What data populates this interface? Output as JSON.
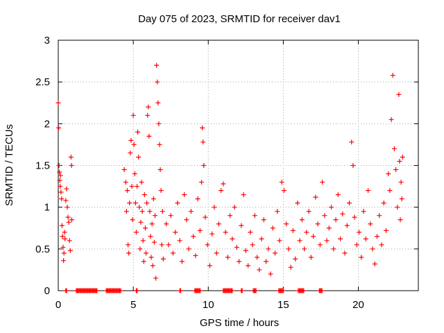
{
  "chart_data": {
    "type": "scatter",
    "title": "Day 075 of 2023, SRMTID for receiver dav1",
    "xlabel": "GPS time / hours",
    "ylabel": "SRMTID / TECUs",
    "xlim": [
      0,
      24
    ],
    "ylim": [
      0,
      3
    ],
    "x_ticks": [
      0,
      5,
      10,
      15,
      20
    ],
    "y_ticks": [
      0,
      0.5,
      1,
      1.5,
      2,
      2.5,
      3
    ],
    "x_tick_labels": [
      "0",
      "5",
      "10",
      "15",
      "20"
    ],
    "y_tick_labels": [
      "0",
      "0.5",
      "1",
      "1.5",
      "2",
      "2.5",
      "3"
    ],
    "grid": true,
    "marker": "+",
    "color": "#ff0000",
    "series": [
      {
        "name": "dav1",
        "points": [
          [
            0.0,
            2.25
          ],
          [
            0.03,
            1.95
          ],
          [
            0.05,
            1.5
          ],
          [
            0.08,
            1.42
          ],
          [
            0.1,
            1.32
          ],
          [
            0.13,
            1.25
          ],
          [
            0.15,
            1.38
          ],
          [
            0.18,
            1.18
          ],
          [
            0.22,
            1.1
          ],
          [
            0.25,
            0.78
          ],
          [
            0.28,
            0.65
          ],
          [
            0.32,
            0.52
          ],
          [
            0.35,
            0.36
          ],
          [
            0.38,
            0.45
          ],
          [
            0.42,
            0.7
          ],
          [
            0.45,
            0.62
          ],
          [
            0.5,
            1.08
          ],
          [
            0.55,
            1.22
          ],
          [
            0.6,
            1.0
          ],
          [
            0.65,
            0.88
          ],
          [
            0.7,
            0.82
          ],
          [
            0.75,
            0.6
          ],
          [
            0.8,
            0.48
          ],
          [
            0.85,
            1.6
          ],
          [
            0.88,
            1.5
          ],
          [
            0.9,
            0.85
          ],
          [
            4.4,
            1.45
          ],
          [
            4.5,
            1.3
          ],
          [
            4.55,
            0.95
          ],
          [
            4.6,
            1.2
          ],
          [
            4.65,
            0.55
          ],
          [
            4.7,
            0.45
          ],
          [
            4.75,
            1.05
          ],
          [
            4.8,
            1.65
          ],
          [
            4.85,
            1.8
          ],
          [
            4.9,
            1.25
          ],
          [
            4.95,
            0.85
          ],
          [
            5.0,
            2.1
          ],
          [
            5.05,
            1.75
          ],
          [
            5.1,
            1.4
          ],
          [
            5.15,
            1.05
          ],
          [
            5.2,
            0.7
          ],
          [
            5.25,
            1.25
          ],
          [
            5.3,
            1.9
          ],
          [
            5.35,
            1.6
          ],
          [
            5.4,
            1.0
          ],
          [
            5.45,
            0.5
          ],
          [
            5.5,
            0.82
          ],
          [
            5.55,
            1.3
          ],
          [
            5.6,
            0.95
          ],
          [
            5.65,
            0.6
          ],
          [
            5.7,
            0.35
          ],
          [
            5.75,
            1.15
          ],
          [
            5.8,
            0.75
          ],
          [
            5.85,
            0.45
          ],
          [
            5.9,
            1.05
          ],
          [
            5.95,
            2.1
          ],
          [
            6.0,
            2.2
          ],
          [
            6.05,
            1.85
          ],
          [
            6.1,
            0.95
          ],
          [
            6.15,
            0.65
          ],
          [
            6.2,
            0.4
          ],
          [
            6.25,
            0.8
          ],
          [
            6.3,
            0.3
          ],
          [
            6.35,
            1.1
          ],
          [
            6.4,
            0.58
          ],
          [
            6.45,
            0.9
          ],
          [
            6.5,
            0.15
          ],
          [
            6.55,
            2.7
          ],
          [
            6.6,
            2.5
          ],
          [
            6.65,
            2.25
          ],
          [
            6.7,
            2.0
          ],
          [
            6.75,
            1.75
          ],
          [
            6.8,
            1.45
          ],
          [
            6.85,
            1.2
          ],
          [
            6.9,
            0.55
          ],
          [
            6.95,
            0.95
          ],
          [
            7.0,
            0.38
          ],
          [
            7.2,
            0.8
          ],
          [
            7.35,
            0.55
          ],
          [
            7.5,
            0.9
          ],
          [
            7.65,
            0.45
          ],
          [
            7.8,
            0.7
          ],
          [
            7.95,
            1.05
          ],
          [
            8.1,
            0.6
          ],
          [
            8.25,
            0.35
          ],
          [
            8.4,
            1.15
          ],
          [
            8.55,
            0.85
          ],
          [
            8.7,
            0.5
          ],
          [
            8.85,
            0.95
          ],
          [
            9.0,
            0.65
          ],
          [
            9.15,
            0.42
          ],
          [
            9.3,
            1.1
          ],
          [
            9.45,
            0.72
          ],
          [
            9.55,
            1.3
          ],
          [
            9.6,
            1.95
          ],
          [
            9.65,
            1.78
          ],
          [
            9.7,
            1.5
          ],
          [
            9.8,
            0.88
          ],
          [
            9.95,
            0.55
          ],
          [
            10.1,
            0.3
          ],
          [
            10.25,
            0.68
          ],
          [
            10.4,
            1.0
          ],
          [
            10.55,
            0.45
          ],
          [
            10.7,
            0.8
          ],
          [
            10.85,
            1.2
          ],
          [
            11.0,
            1.28
          ],
          [
            11.15,
            0.7
          ],
          [
            11.3,
            0.4
          ],
          [
            11.45,
            0.9
          ],
          [
            11.6,
            0.62
          ],
          [
            11.75,
            1.0
          ],
          [
            11.9,
            0.52
          ],
          [
            12.05,
            0.35
          ],
          [
            12.2,
            0.78
          ],
          [
            12.35,
            1.15
          ],
          [
            12.5,
            0.48
          ],
          [
            12.65,
            0.3
          ],
          [
            12.8,
            0.7
          ],
          [
            12.95,
            0.55
          ],
          [
            13.1,
            0.9
          ],
          [
            13.25,
            0.4
          ],
          [
            13.4,
            0.25
          ],
          [
            13.55,
            0.62
          ],
          [
            13.7,
            0.85
          ],
          [
            13.85,
            0.35
          ],
          [
            14.0,
            0.5
          ],
          [
            14.15,
            0.2
          ],
          [
            14.3,
            0.75
          ],
          [
            14.45,
            0.45
          ],
          [
            14.6,
            0.95
          ],
          [
            14.75,
            0.6
          ],
          [
            14.9,
            1.3
          ],
          [
            15.05,
            1.2
          ],
          [
            15.2,
            0.8
          ],
          [
            15.35,
            0.5
          ],
          [
            15.5,
            0.28
          ],
          [
            15.65,
            0.72
          ],
          [
            15.8,
            0.38
          ],
          [
            15.95,
            1.05
          ],
          [
            16.1,
            0.6
          ],
          [
            16.25,
            0.85
          ],
          [
            16.4,
            0.5
          ],
          [
            16.55,
            0.7
          ],
          [
            16.7,
            0.95
          ],
          [
            16.85,
            0.4
          ],
          [
            17.0,
            0.65
          ],
          [
            17.15,
            1.12
          ],
          [
            17.3,
            0.8
          ],
          [
            17.45,
            0.55
          ],
          [
            17.6,
            1.3
          ],
          [
            17.75,
            0.9
          ],
          [
            17.9,
            0.6
          ],
          [
            18.05,
            0.75
          ],
          [
            18.2,
            1.0
          ],
          [
            18.35,
            0.5
          ],
          [
            18.5,
            0.85
          ],
          [
            18.65,
            1.15
          ],
          [
            18.8,
            0.62
          ],
          [
            18.95,
            0.92
          ],
          [
            19.1,
            0.45
          ],
          [
            19.25,
            0.78
          ],
          [
            19.4,
            1.05
          ],
          [
            19.55,
            1.78
          ],
          [
            19.65,
            1.5
          ],
          [
            19.75,
            0.88
          ],
          [
            19.9,
            0.55
          ],
          [
            20.05,
            0.7
          ],
          [
            20.2,
            0.4
          ],
          [
            20.35,
            0.95
          ],
          [
            20.5,
            0.62
          ],
          [
            20.65,
            1.2
          ],
          [
            20.8,
            0.8
          ],
          [
            20.95,
            0.5
          ],
          [
            21.1,
            0.32
          ],
          [
            21.25,
            0.65
          ],
          [
            21.4,
            0.9
          ],
          [
            21.55,
            0.55
          ],
          [
            21.7,
            1.05
          ],
          [
            21.85,
            0.72
          ],
          [
            22.0,
            1.4
          ],
          [
            22.1,
            1.2
          ],
          [
            22.2,
            2.05
          ],
          [
            22.3,
            2.58
          ],
          [
            22.4,
            1.7
          ],
          [
            22.5,
            1.45
          ],
          [
            22.6,
            1.0
          ],
          [
            22.7,
            2.35
          ],
          [
            22.75,
            1.55
          ],
          [
            22.8,
            0.85
          ],
          [
            22.85,
            1.3
          ],
          [
            22.9,
            1.1
          ],
          [
            22.95,
            1.6
          ]
        ]
      }
    ],
    "zero_runs": [
      [
        0.5,
        0.6
      ],
      [
        1.2,
        2.6
      ],
      [
        3.2,
        4.2
      ],
      [
        5.2,
        5.3
      ],
      [
        8.1,
        8.2
      ],
      [
        9.1,
        9.5
      ],
      [
        11.0,
        11.6
      ],
      [
        12.2,
        12.3
      ],
      [
        13.0,
        13.2
      ],
      [
        14.7,
        15.0
      ],
      [
        16.0,
        16.4
      ],
      [
        17.4,
        17.6
      ]
    ]
  }
}
